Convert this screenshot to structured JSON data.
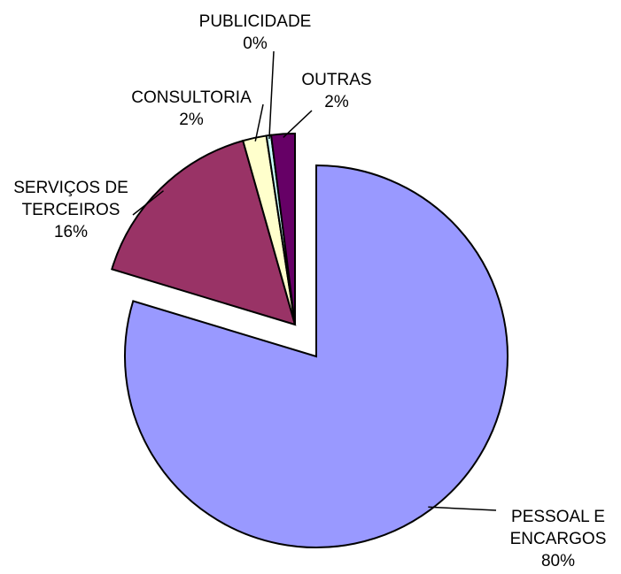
{
  "chart_data": {
    "type": "pie",
    "categories": [
      "PESSOAL E ENCARGOS",
      "SERVIÇOS DE TERCEIROS",
      "CONSULTORIA",
      "PUBLICIDADE",
      "OUTRAS"
    ],
    "values": [
      80,
      16,
      2,
      0.4,
      2
    ],
    "value_labels": [
      "80%",
      "16%",
      "2%",
      "0%",
      "2%"
    ],
    "colors": [
      "#9999ff",
      "#993366",
      "#ffffcc",
      "#ccffff",
      "#660066"
    ]
  }
}
